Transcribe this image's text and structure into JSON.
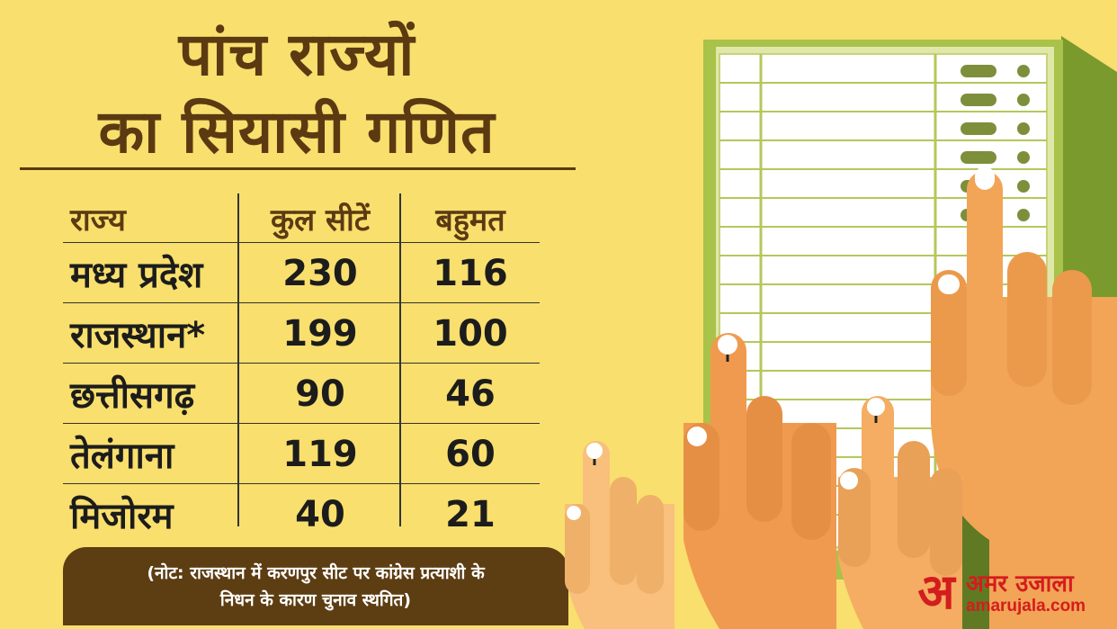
{
  "title": {
    "line1": "पांच राज्यों",
    "line2": "का सियासी गणित"
  },
  "table": {
    "headers": [
      "राज्य",
      "कुल सीटें",
      "बहुमत"
    ],
    "rows": [
      [
        "मध्य प्रदेश",
        "230",
        "116"
      ],
      [
        "राजस्थान*",
        "199",
        "100"
      ],
      [
        "छत्तीसगढ़",
        "90",
        "46"
      ],
      [
        "तेलंगाना",
        "119",
        "60"
      ],
      [
        "मिजोरम",
        "40",
        "21"
      ]
    ]
  },
  "note": {
    "line1": "(नोट: राजस्थान में करणपुर सीट पर कांग्रेस प्रत्याशी के",
    "line2": "निधन के कारण चुनाव स्थगित)"
  },
  "logo": {
    "mark": "अ",
    "name": "अमर उजाला",
    "url": "amarujala.com"
  },
  "colors": {
    "background": "#f9df6d",
    "title": "#5b3a12",
    "note_bg": "#5d3d12",
    "brand": "#d31d1d"
  }
}
